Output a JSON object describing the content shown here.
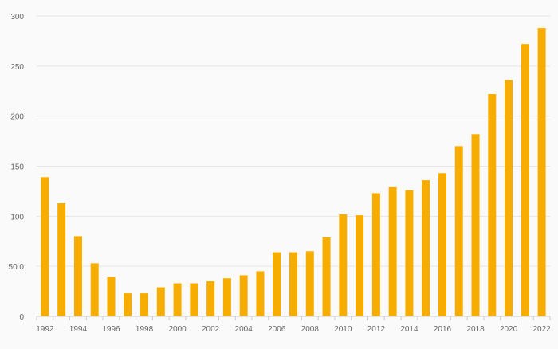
{
  "chart_data": {
    "type": "bar",
    "title": "",
    "xlabel": "",
    "ylabel": "",
    "categories": [
      "1992",
      "1993",
      "1994",
      "1995",
      "1996",
      "1997",
      "1998",
      "1999",
      "2000",
      "2001",
      "2002",
      "2003",
      "2004",
      "2005",
      "2006",
      "2007",
      "2008",
      "2009",
      "2010",
      "2011",
      "2012",
      "2013",
      "2014",
      "2015",
      "2016",
      "2017",
      "2018",
      "2019",
      "2020",
      "2021",
      "2022"
    ],
    "values": [
      139,
      113,
      80,
      53,
      39,
      23,
      23,
      29,
      33,
      33,
      35,
      38,
      41,
      45,
      64,
      64,
      65,
      79,
      102,
      101,
      123,
      129,
      126,
      136,
      143,
      170,
      182,
      222,
      236,
      272,
      288
    ],
    "x_tick_labels": [
      "1992",
      "1994",
      "1996",
      "1998",
      "2000",
      "2002",
      "2004",
      "2006",
      "2008",
      "2010",
      "2012",
      "2014",
      "2016",
      "2018",
      "2020",
      "2022"
    ],
    "y_ticks": [
      0,
      50,
      100,
      150,
      200,
      250,
      300
    ],
    "y_tick_labels": [
      "0",
      "50.0",
      "100",
      "150",
      "200",
      "250",
      "300"
    ],
    "ylim": [
      0,
      300
    ],
    "grid": true,
    "legend": "none",
    "bar_color": "#f7ad00"
  }
}
